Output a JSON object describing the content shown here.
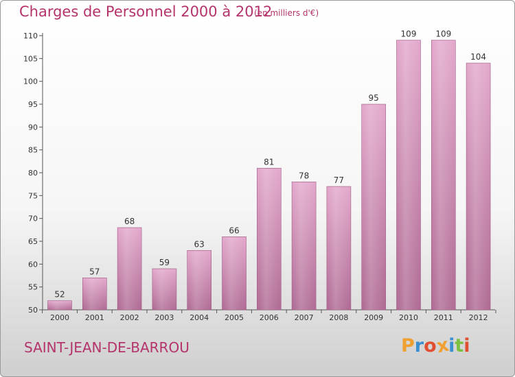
{
  "header": {
    "title": "Charges de Personnel 2000 à 2012",
    "subtitle": "(en milliers d'€)"
  },
  "footer": {
    "commune": "SAINT-JEAN-DE-BARROU",
    "logo_text": "Proxiti"
  },
  "colors": {
    "title": "#b5336b",
    "bar_top": "#e3a9cc",
    "bar_bottom": "#b06c95",
    "logo_letters": [
      "#f0a030",
      "#3a8fd0",
      "#e05030",
      "#f0a030",
      "#3a8fd0",
      "#7cc040",
      "#e05030"
    ]
  },
  "chart_data": {
    "type": "bar",
    "title": "Charges de Personnel 2000 à 2012",
    "subtitle": "(en milliers d'€)",
    "categories": [
      "2000",
      "2001",
      "2002",
      "2003",
      "2004",
      "2005",
      "2006",
      "2007",
      "2008",
      "2009",
      "2010",
      "2011",
      "2012"
    ],
    "values": [
      52,
      57,
      68,
      59,
      63,
      66,
      81,
      78,
      77,
      95,
      109,
      109,
      104
    ],
    "ylim": [
      50,
      110
    ],
    "yticks": [
      50,
      55,
      60,
      65,
      70,
      75,
      80,
      85,
      90,
      95,
      100,
      105,
      110
    ],
    "grid": false,
    "legend": "none"
  }
}
